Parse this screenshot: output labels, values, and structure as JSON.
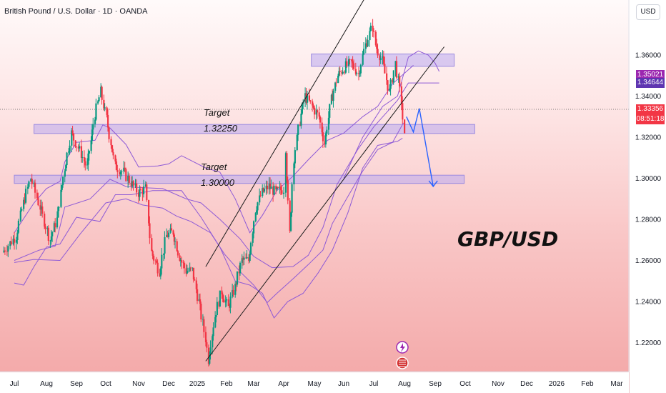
{
  "chart_data": {
    "type": "candlestick",
    "title": "British Pound / U.S. Dollar · 1D · OANDA",
    "watermark": "GBP/USD",
    "currency_label": "USD",
    "x_tick_labels": [
      "Jul",
      "Aug",
      "Sep",
      "Oct",
      "Nov",
      "Dec",
      "2025",
      "Feb",
      "Mar",
      "Apr",
      "May",
      "Jun",
      "Jul",
      "Aug",
      "Sep",
      "Oct",
      "Nov",
      "Dec",
      "2026",
      "Feb",
      "Mar"
    ],
    "x_tick_dates": [
      "2024-07-01",
      "2024-08-01",
      "2024-09-01",
      "2024-10-01",
      "2024-11-01",
      "2024-12-01",
      "2025-01-01",
      "2025-02-01",
      "2025-03-01",
      "2025-04-01",
      "2025-05-01",
      "2025-06-01",
      "2025-07-01",
      "2025-08-01",
      "2025-09-01",
      "2025-10-01",
      "2025-11-01",
      "2025-12-01",
      "2026-01-01",
      "2026-02-01",
      "2026-03-01"
    ],
    "y_ticks": [
      "1.36000",
      "1.34000",
      "1.32000",
      "1.30000",
      "1.28000",
      "1.26000",
      "1.24000",
      "1.22000"
    ],
    "ylim": [
      1.205,
      1.395
    ],
    "price_labels": [
      {
        "text": "1.35021",
        "value": 1.35021,
        "color": "#9c27b0"
      },
      {
        "text": "1.34644",
        "value": 1.34644,
        "color": "#5e35b1"
      },
      {
        "text": "1.33356",
        "value": 1.33356,
        "color": "#f23645"
      },
      {
        "text": "08:51:18",
        "value": null,
        "color": "#f23645"
      }
    ],
    "current_price": 1.33356,
    "zones": [
      {
        "name": "resistance",
        "from": "2025-04-28",
        "to": "2025-09-20",
        "low": 1.3545,
        "high": 1.3605
      },
      {
        "name": "target-1",
        "from": "2024-07-20",
        "to": "2025-10-10",
        "low": 1.3218,
        "high": 1.3262
      },
      {
        "name": "target-2",
        "from": "2024-07-01",
        "to": "2025-09-30",
        "low": 1.2975,
        "high": 1.3015
      }
    ],
    "annotations": [
      {
        "title": "Target",
        "value": "1.32250"
      },
      {
        "title": "Target",
        "value": "1.30000"
      }
    ],
    "channel_lines": [
      {
        "from": [
          "2025-01-10",
          1.257
        ],
        "to": [
          "2025-07-01",
          1.395
        ]
      },
      {
        "from": [
          "2025-01-10",
          1.211
        ],
        "to": [
          "2025-09-10",
          1.364
        ]
      }
    ],
    "projection": [
      [
        "2025-08-03",
        1.33
      ],
      [
        "2025-08-10",
        1.3225
      ],
      [
        "2025-08-16",
        1.334
      ],
      [
        "2025-08-30",
        1.296
      ]
    ],
    "indicator_bands": {
      "upper": [
        [
          "2024-07-01",
          1.2735
        ],
        [
          "2024-07-20",
          1.288
        ],
        [
          "2024-08-01",
          1.295
        ],
        [
          "2024-08-15",
          1.2985
        ],
        [
          "2024-08-20",
          1.308
        ],
        [
          "2024-09-01",
          1.3175
        ],
        [
          "2024-09-20",
          1.3185
        ],
        [
          "2024-09-28",
          1.326
        ],
        [
          "2024-10-05",
          1.3245
        ],
        [
          "2024-10-20",
          1.3165
        ],
        [
          "2024-11-01",
          1.3055
        ],
        [
          "2024-11-20",
          1.306
        ],
        [
          "2024-12-01",
          1.307
        ],
        [
          "2024-12-15",
          1.311
        ],
        [
          "2025-01-10",
          1.305
        ],
        [
          "2025-01-25",
          1.303
        ],
        [
          "2025-02-10",
          1.29
        ],
        [
          "2025-02-25",
          1.2735
        ],
        [
          "2025-03-10",
          1.282
        ],
        [
          "2025-03-25",
          1.294
        ],
        [
          "2025-04-10",
          1.301
        ],
        [
          "2025-04-25",
          1.309
        ],
        [
          "2025-05-15",
          1.3185
        ],
        [
          "2025-06-01",
          1.322
        ],
        [
          "2025-06-20",
          1.33
        ],
        [
          "2025-07-05",
          1.335
        ],
        [
          "2025-07-20",
          1.346
        ],
        [
          "2025-08-03",
          1.352
        ],
        [
          "2025-08-10",
          1.355
        ]
      ],
      "middle": [
        [
          "2024-07-01",
          1.26
        ],
        [
          "2024-07-25",
          1.265
        ],
        [
          "2024-08-10",
          1.267
        ],
        [
          "2024-08-20",
          1.286
        ],
        [
          "2024-09-15",
          1.29
        ],
        [
          "2024-10-05",
          1.2995
        ],
        [
          "2024-10-20",
          1.296
        ],
        [
          "2024-11-01",
          1.2955
        ],
        [
          "2024-11-25",
          1.295
        ],
        [
          "2024-12-20",
          1.29
        ],
        [
          "2025-01-05",
          1.288
        ],
        [
          "2025-01-25",
          1.28
        ],
        [
          "2025-02-15",
          1.2705
        ],
        [
          "2025-03-01",
          1.262
        ],
        [
          "2025-03-20",
          1.2565
        ],
        [
          "2025-04-10",
          1.257
        ],
        [
          "2025-04-25",
          1.2625
        ],
        [
          "2025-05-10",
          1.276
        ],
        [
          "2025-05-25",
          1.297
        ],
        [
          "2025-06-15",
          1.314
        ],
        [
          "2025-07-01",
          1.325
        ],
        [
          "2025-07-25",
          1.338
        ],
        [
          "2025-08-05",
          1.3464
        ],
        [
          "2025-09-05",
          1.3464
        ]
      ],
      "lower": [
        [
          "2024-07-01",
          1.259
        ],
        [
          "2024-07-20",
          1.2605
        ],
        [
          "2024-08-15",
          1.26
        ],
        [
          "2024-09-05",
          1.273
        ],
        [
          "2024-10-01",
          1.288
        ],
        [
          "2024-10-20",
          1.29
        ],
        [
          "2024-11-05",
          1.287
        ],
        [
          "2024-11-25",
          1.2855
        ],
        [
          "2024-12-10",
          1.2815
        ],
        [
          "2024-12-25",
          1.279
        ],
        [
          "2025-01-15",
          1.2735
        ],
        [
          "2025-01-30",
          1.263
        ],
        [
          "2025-02-15",
          1.2545
        ],
        [
          "2025-03-01",
          1.248
        ],
        [
          "2025-03-15",
          1.2395
        ],
        [
          "2025-03-25",
          1.244
        ],
        [
          "2025-04-10",
          1.251
        ],
        [
          "2025-04-25",
          1.258
        ],
        [
          "2025-05-10",
          1.265
        ],
        [
          "2025-05-20",
          1.278
        ],
        [
          "2025-06-05",
          1.291
        ],
        [
          "2025-06-20",
          1.3035
        ],
        [
          "2025-07-05",
          1.314
        ],
        [
          "2025-07-20",
          1.3175
        ],
        [
          "2025-07-31",
          1.327
        ]
      ],
      "lagging": [
        [
          "2024-07-01",
          1.249
        ],
        [
          "2024-07-10",
          1.248
        ],
        [
          "2024-07-20",
          1.257
        ],
        [
          "2024-08-01",
          1.2665
        ],
        [
          "2024-08-15",
          1.268
        ],
        [
          "2024-09-01",
          1.281
        ],
        [
          "2024-09-25",
          1.279
        ],
        [
          "2024-10-10",
          1.292
        ],
        [
          "2024-10-25",
          1.292
        ],
        [
          "2024-11-15",
          1.294
        ],
        [
          "2024-12-15",
          1.294
        ],
        [
          "2025-01-05",
          1.281
        ],
        [
          "2025-01-25",
          1.2665
        ],
        [
          "2025-02-10",
          1.25
        ],
        [
          "2025-02-25",
          1.248
        ],
        [
          "2025-03-10",
          1.244
        ],
        [
          "2025-03-22",
          1.232
        ],
        [
          "2025-04-05",
          1.24
        ],
        [
          "2025-04-20",
          1.244
        ],
        [
          "2025-05-05",
          1.254
        ],
        [
          "2025-05-20",
          1.265
        ],
        [
          "2025-06-05",
          1.283
        ],
        [
          "2025-06-20",
          1.305
        ],
        [
          "2025-07-05",
          1.316
        ],
        [
          "2025-07-25",
          1.318
        ],
        [
          "2025-07-30",
          1.3195
        ]
      ],
      "cloud": [
        [
          "2025-06-01",
          1.3
        ],
        [
          "2025-06-20",
          1.32
        ],
        [
          "2025-07-10",
          1.335
        ],
        [
          "2025-07-25",
          1.34
        ],
        [
          "2025-08-05",
          1.359
        ],
        [
          "2025-08-15",
          1.362
        ],
        [
          "2025-08-25",
          1.36
        ],
        [
          "2025-09-01",
          1.356
        ],
        [
          "2025-09-05",
          1.352
        ]
      ]
    },
    "price_path": [
      [
        "2024-06-20",
        1.264
      ],
      [
        "2024-07-03",
        1.272
      ],
      [
        "2024-07-10",
        1.288
      ],
      [
        "2024-07-17",
        1.3
      ],
      [
        "2024-07-26",
        1.286
      ],
      [
        "2024-08-05",
        1.27
      ],
      [
        "2024-08-12",
        1.28
      ],
      [
        "2024-08-20",
        1.305
      ],
      [
        "2024-08-27",
        1.322
      ],
      [
        "2024-09-06",
        1.312
      ],
      [
        "2024-09-12",
        1.305
      ],
      [
        "2024-09-20",
        1.331
      ],
      [
        "2024-09-26",
        1.342
      ],
      [
        "2024-10-02",
        1.329
      ],
      [
        "2024-10-10",
        1.306
      ],
      [
        "2024-10-18",
        1.303
      ],
      [
        "2024-10-25",
        1.298
      ],
      [
        "2024-11-01",
        1.293
      ],
      [
        "2024-11-08",
        1.295
      ],
      [
        "2024-11-14",
        1.264
      ],
      [
        "2024-11-22",
        1.255
      ],
      [
        "2024-11-29",
        1.272
      ],
      [
        "2024-12-06",
        1.274
      ],
      [
        "2024-12-13",
        1.262
      ],
      [
        "2024-12-20",
        1.255
      ],
      [
        "2024-12-27",
        1.255
      ],
      [
        "2025-01-03",
        1.24
      ],
      [
        "2025-01-10",
        1.222
      ],
      [
        "2025-01-13",
        1.212
      ],
      [
        "2025-01-20",
        1.233
      ],
      [
        "2025-01-27",
        1.245
      ],
      [
        "2025-02-03",
        1.237
      ],
      [
        "2025-02-10",
        1.247
      ],
      [
        "2025-02-17",
        1.26
      ],
      [
        "2025-02-24",
        1.26
      ],
      [
        "2025-03-03",
        1.285
      ],
      [
        "2025-03-10",
        1.293
      ],
      [
        "2025-03-17",
        1.296
      ],
      [
        "2025-03-24",
        1.293
      ],
      [
        "2025-04-01",
        1.295
      ],
      [
        "2025-04-03",
        1.315
      ],
      [
        "2025-04-07",
        1.273
      ],
      [
        "2025-04-11",
        1.31
      ],
      [
        "2025-04-17",
        1.328
      ],
      [
        "2025-04-22",
        1.34
      ],
      [
        "2025-04-29",
        1.335
      ],
      [
        "2025-05-06",
        1.33
      ],
      [
        "2025-05-12",
        1.317
      ],
      [
        "2025-05-19",
        1.338
      ],
      [
        "2025-05-26",
        1.35
      ],
      [
        "2025-06-02",
        1.354
      ],
      [
        "2025-06-09",
        1.356
      ],
      [
        "2025-06-16",
        1.351
      ],
      [
        "2025-06-23",
        1.365
      ],
      [
        "2025-06-30",
        1.374
      ],
      [
        "2025-07-03",
        1.365
      ],
      [
        "2025-07-10",
        1.357
      ],
      [
        "2025-07-17",
        1.342
      ],
      [
        "2025-07-23",
        1.356
      ],
      [
        "2025-07-29",
        1.338
      ],
      [
        "2025-08-01",
        1.32
      ]
    ]
  },
  "toolbar": {
    "icons": [
      "lightning-icon",
      "flag-icon"
    ]
  }
}
